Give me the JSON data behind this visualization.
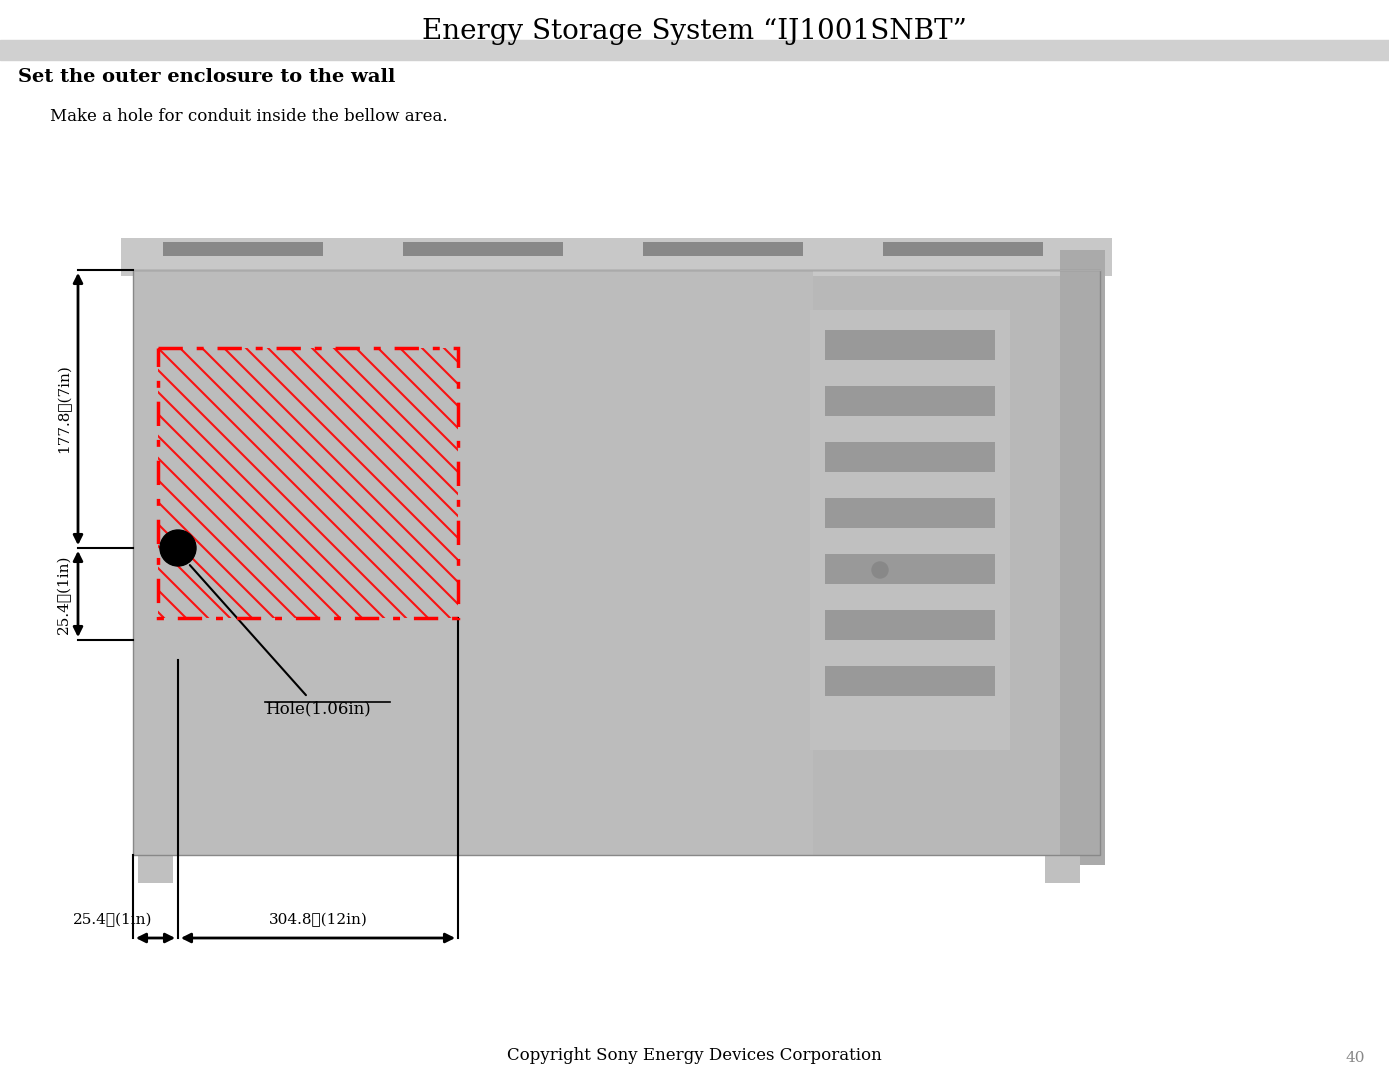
{
  "title": "Energy Storage System “IJ1001SNBT”",
  "subtitle": "Set the outer enclosure to the wall",
  "instruction": "Make a hole for conduit inside the bellow area.",
  "copyright": "Copyright Sony Energy Devices Corporation",
  "page_number": "40",
  "dim_177_label": "177.8㎜(7in)",
  "dim_25_1_label": "25.4㎜(1in)",
  "dim_25_2_label": "25.4㎜(1in)",
  "dim_304_label": "304.8㎜(12in)",
  "hole_label": "Hole(1.06in)",
  "header_bar_color": "#d0d0d0",
  "red_color": "#ff0000",
  "bg_color": "#ffffff",
  "enclosure_color": "#b8b8b8",
  "enclosure_top_color": "#c8c8c8",
  "vent_dark": "#999999",
  "vent_light": "#c0c0c0"
}
